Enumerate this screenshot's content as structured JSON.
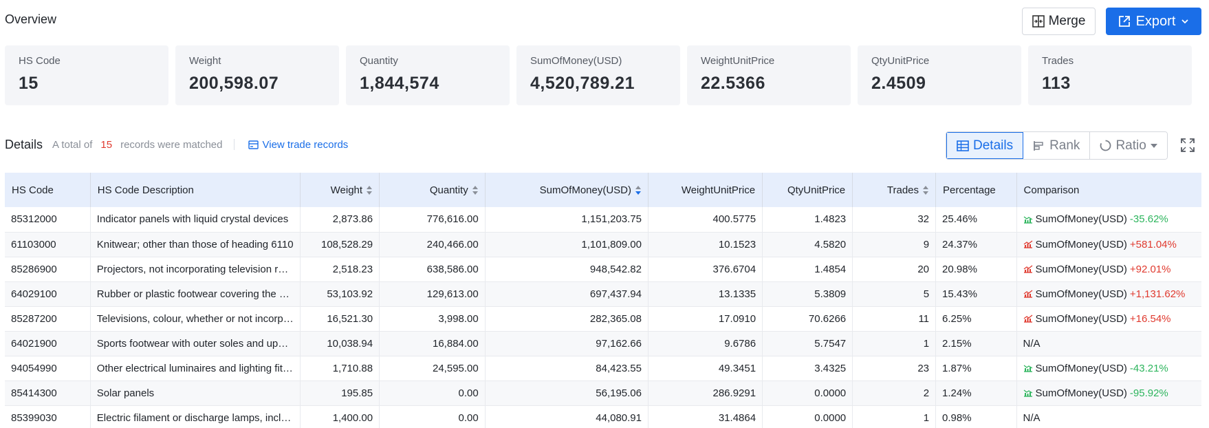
{
  "overview": {
    "title": "Overview",
    "merge_label": "Merge",
    "export_label": "Export"
  },
  "cards": [
    {
      "label": "HS Code",
      "value": "15"
    },
    {
      "label": "Weight",
      "value": "200,598.07"
    },
    {
      "label": "Quantity",
      "value": "1,844,574"
    },
    {
      "label": "SumOfMoney(USD)",
      "value": "4,520,789.21"
    },
    {
      "label": "WeightUnitPrice",
      "value": "22.5366"
    },
    {
      "label": "QtyUnitPrice",
      "value": "2.4509"
    },
    {
      "label": "Trades",
      "value": "113"
    }
  ],
  "details": {
    "title": "Details",
    "prefix": "A total of",
    "count": "15",
    "suffix": "records were matched",
    "view_link": "View trade records",
    "tabs": {
      "details": "Details",
      "rank": "Rank",
      "ratio": "Ratio"
    }
  },
  "table": {
    "headers": {
      "hs_code": "HS Code",
      "description": "HS Code Description",
      "weight": "Weight",
      "quantity": "Quantity",
      "sum": "SumOfMoney(USD)",
      "weight_unit_price": "WeightUnitPrice",
      "qty_unit_price": "QtyUnitPrice",
      "trades": "Trades",
      "percentage": "Percentage",
      "comparison": "Comparison"
    },
    "rows": [
      {
        "hs": "85312000",
        "desc": "Indicator panels with liquid crystal devices",
        "weight": "2,873.86",
        "qty": "776,616.00",
        "sum": "1,151,203.75",
        "wup": "400.5775",
        "qup": "1.4823",
        "trades": "32",
        "pct": "25.46%",
        "cmp_metric": "SumOfMoney(USD)",
        "cmp_val": "-35.62%",
        "cmp_dir": "down"
      },
      {
        "hs": "61103000",
        "desc": "Knitwear; other than those of heading 6110",
        "weight": "108,528.29",
        "qty": "240,466.00",
        "sum": "1,101,809.00",
        "wup": "10.1523",
        "qup": "4.5820",
        "trades": "9",
        "pct": "24.37%",
        "cmp_metric": "SumOfMoney(USD)",
        "cmp_val": "+581.04%",
        "cmp_dir": "up"
      },
      {
        "hs": "85286900",
        "desc": "Projectors, not incorporating television reception",
        "weight": "2,518.23",
        "qty": "638,586.00",
        "sum": "948,542.82",
        "wup": "376.6704",
        "qup": "1.4854",
        "trades": "20",
        "pct": "20.98%",
        "cmp_metric": "SumOfMoney(USD)",
        "cmp_val": "+92.01%",
        "cmp_dir": "up"
      },
      {
        "hs": "64029100",
        "desc": "Rubber or plastic footwear covering the ankle",
        "weight": "53,103.92",
        "qty": "129,613.00",
        "sum": "697,437.94",
        "wup": "13.1335",
        "qup": "5.3809",
        "trades": "5",
        "pct": "15.43%",
        "cmp_metric": "SumOfMoney(USD)",
        "cmp_val": "+1,131.62%",
        "cmp_dir": "up"
      },
      {
        "hs": "85287200",
        "desc": "Televisions, colour, whether or not incorporating",
        "weight": "16,521.30",
        "qty": "3,998.00",
        "sum": "282,365.08",
        "wup": "17.0910",
        "qup": "70.6266",
        "trades": "11",
        "pct": "6.25%",
        "cmp_metric": "SumOfMoney(USD)",
        "cmp_val": "+16.54%",
        "cmp_dir": "up"
      },
      {
        "hs": "64021900",
        "desc": "Sports footwear with outer soles and uppers",
        "weight": "10,038.94",
        "qty": "16,884.00",
        "sum": "97,162.66",
        "wup": "9.6786",
        "qup": "5.7547",
        "trades": "1",
        "pct": "2.15%",
        "cmp_metric": "",
        "cmp_val": "N/A",
        "cmp_dir": "none"
      },
      {
        "hs": "94054990",
        "desc": "Other electrical luminaires and lighting fittings",
        "weight": "1,710.88",
        "qty": "24,595.00",
        "sum": "84,423.55",
        "wup": "49.3451",
        "qup": "3.4325",
        "trades": "23",
        "pct": "1.87%",
        "cmp_metric": "SumOfMoney(USD)",
        "cmp_val": "-43.21%",
        "cmp_dir": "down"
      },
      {
        "hs": "85414300",
        "desc": "Solar panels",
        "weight": "195.85",
        "qty": "0.00",
        "sum": "56,195.06",
        "wup": "286.9291",
        "qup": "0.0000",
        "trades": "2",
        "pct": "1.24%",
        "cmp_metric": "SumOfMoney(USD)",
        "cmp_val": "-95.92%",
        "cmp_dir": "down"
      },
      {
        "hs": "85399030",
        "desc": "Electric filament or discharge lamps, including",
        "weight": "1,400.00",
        "qty": "0.00",
        "sum": "44,080.91",
        "wup": "31.4864",
        "qup": "0.0000",
        "trades": "1",
        "pct": "0.98%",
        "cmp_metric": "",
        "cmp_val": "N/A",
        "cmp_dir": "none"
      }
    ]
  },
  "colors": {
    "accent": "#1a6ee8",
    "up": "#e03a2f",
    "down": "#2db55d"
  }
}
